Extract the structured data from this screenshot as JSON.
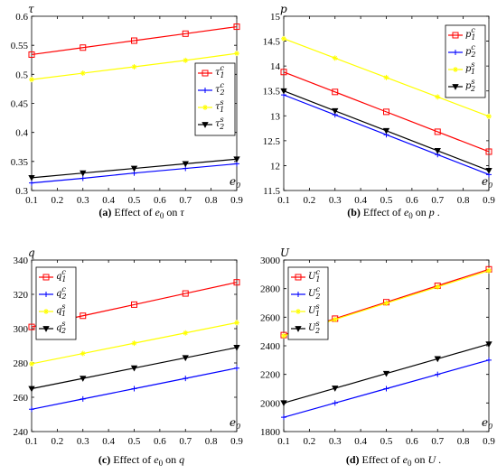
{
  "chart_data": [
    {
      "type": "line",
      "id": "a",
      "caption": {
        "prefix": "(a)",
        "text": "Effect of",
        "var": "e",
        "sub": "0",
        "on": "on",
        "target": "τ",
        "end": ""
      },
      "ylabel": {
        "main": "τ",
        "sub": ""
      },
      "xlabel": {
        "main": "e",
        "sub": "0"
      },
      "x": [
        0.1,
        0.3,
        0.5,
        0.7,
        0.9
      ],
      "xlim": [
        0.1,
        0.9
      ],
      "ylim": [
        0.3,
        0.6
      ],
      "yticks": [
        "0.3",
        "0.35",
        "0.4",
        "0.45",
        "0.5",
        "0.55",
        "0.6"
      ],
      "xticks": [
        "0.1",
        "0.2",
        "0.3",
        "0.4",
        "0.5",
        "0.6",
        "0.7",
        "0.8",
        "0.9"
      ],
      "legend_position": "right",
      "series": [
        {
          "name": "τ",
          "sub": "1",
          "sup": "c",
          "color": "#ff0000",
          "marker": "square",
          "values": [
            0.534,
            0.546,
            0.558,
            0.57,
            0.582
          ]
        },
        {
          "name": "τ",
          "sub": "2",
          "sup": "c",
          "color": "#0000ff",
          "marker": "plus",
          "values": [
            0.313,
            0.321,
            0.33,
            0.338,
            0.346
          ]
        },
        {
          "name": "τ",
          "sub": "1",
          "sup": "s",
          "color": "#ffff00",
          "marker": "star",
          "values": [
            0.491,
            0.502,
            0.513,
            0.524,
            0.536
          ]
        },
        {
          "name": "τ",
          "sub": "2",
          "sup": "s",
          "color": "#000000",
          "marker": "triangle-down",
          "values": [
            0.322,
            0.33,
            0.338,
            0.346,
            0.354
          ]
        }
      ]
    },
    {
      "type": "line",
      "id": "b",
      "caption": {
        "prefix": "(b)",
        "text": "Effect of",
        "var": "e",
        "sub": "0",
        "on": "on",
        "target": "p",
        "end": "."
      },
      "ylabel": {
        "main": "p",
        "sub": ""
      },
      "xlabel": {
        "main": "e",
        "sub": "0"
      },
      "x": [
        0.1,
        0.3,
        0.5,
        0.7,
        0.9
      ],
      "xlim": [
        0.1,
        0.9
      ],
      "ylim": [
        11.5,
        15
      ],
      "yticks": [
        "11.5",
        "12",
        "12.5",
        "13",
        "13.5",
        "14",
        "14.5",
        "15"
      ],
      "xticks": [
        "0.1",
        "0.2",
        "0.3",
        "0.4",
        "0.5",
        "0.6",
        "0.7",
        "0.8",
        "0.9"
      ],
      "legend_position": "top-right",
      "series": [
        {
          "name": "p",
          "sub": "1",
          "sup": "c",
          "color": "#ff0000",
          "marker": "square",
          "values": [
            13.88,
            13.48,
            13.08,
            12.68,
            12.28
          ]
        },
        {
          "name": "p",
          "sub": "2",
          "sup": "c",
          "color": "#0000ff",
          "marker": "plus",
          "values": [
            13.42,
            13.02,
            12.62,
            12.22,
            11.82
          ]
        },
        {
          "name": "p",
          "sub": "1",
          "sup": "s",
          "color": "#ffff00",
          "marker": "star",
          "values": [
            14.55,
            14.16,
            13.77,
            13.38,
            12.99
          ]
        },
        {
          "name": "p",
          "sub": "2",
          "sup": "s",
          "color": "#000000",
          "marker": "triangle-down",
          "values": [
            13.5,
            13.1,
            12.7,
            12.3,
            11.9
          ]
        }
      ]
    },
    {
      "type": "line",
      "id": "c",
      "caption": {
        "prefix": "(c)",
        "text": "Effect of",
        "var": "e",
        "sub": "0",
        "on": "on",
        "target": "q",
        "end": ""
      },
      "ylabel": {
        "main": "q",
        "sub": ""
      },
      "xlabel": {
        "main": "e",
        "sub": "0"
      },
      "x": [
        0.1,
        0.3,
        0.5,
        0.7,
        0.9
      ],
      "xlim": [
        0.1,
        0.9
      ],
      "ylim": [
        240,
        340
      ],
      "yticks": [
        "240",
        "260",
        "280",
        "300",
        "320",
        "340"
      ],
      "xticks": [
        "0.1",
        "0.2",
        "0.3",
        "0.4",
        "0.5",
        "0.6",
        "0.7",
        "0.8",
        "0.9"
      ],
      "legend_position": "top-left",
      "series": [
        {
          "name": "q",
          "sub": "1",
          "sup": "c",
          "color": "#ff0000",
          "marker": "square",
          "values": [
            301,
            307.5,
            314,
            320.5,
            327
          ]
        },
        {
          "name": "q",
          "sub": "2",
          "sup": "c",
          "color": "#0000ff",
          "marker": "plus",
          "values": [
            253,
            259,
            265,
            271,
            277
          ]
        },
        {
          "name": "q",
          "sub": "1",
          "sup": "s",
          "color": "#ffff00",
          "marker": "star",
          "values": [
            279.5,
            285.5,
            291.5,
            297.5,
            303.5
          ]
        },
        {
          "name": "q",
          "sub": "2",
          "sup": "s",
          "color": "#000000",
          "marker": "triangle-down",
          "values": [
            265,
            271,
            277,
            283,
            289
          ]
        }
      ]
    },
    {
      "type": "line",
      "id": "d",
      "caption": {
        "prefix": "(d)",
        "text": "Effect of",
        "var": "e",
        "sub": "0",
        "on": "on",
        "target": "U",
        "end": "."
      },
      "ylabel": {
        "main": "U",
        "sub": ""
      },
      "xlabel": {
        "main": "e",
        "sub": "0"
      },
      "x": [
        0.1,
        0.3,
        0.5,
        0.7,
        0.9
      ],
      "xlim": [
        0.1,
        0.9
      ],
      "ylim": [
        1800,
        3000
      ],
      "yticks": [
        "1800",
        "2000",
        "2200",
        "2400",
        "2600",
        "2800",
        "3000"
      ],
      "xticks": [
        "0.1",
        "0.2",
        "0.3",
        "0.4",
        "0.5",
        "0.6",
        "0.7",
        "0.8",
        "0.9"
      ],
      "legend_position": "top-left",
      "series": [
        {
          "name": "U",
          "sub": "1",
          "sup": "c",
          "color": "#ff0000",
          "marker": "square",
          "values": [
            2475,
            2590,
            2705,
            2820,
            2935
          ]
        },
        {
          "name": "U",
          "sub": "2",
          "sup": "c",
          "color": "#0000ff",
          "marker": "plus",
          "values": [
            1900,
            2000,
            2100,
            2200,
            2300
          ]
        },
        {
          "name": "U",
          "sub": "1",
          "sup": "s",
          "color": "#ffff00",
          "marker": "star",
          "values": [
            2470,
            2584,
            2698,
            2812,
            2926
          ]
        },
        {
          "name": "U",
          "sub": "2",
          "sup": "s",
          "color": "#000000",
          "marker": "triangle-down",
          "values": [
            2000,
            2103,
            2206,
            2309,
            2412
          ]
        }
      ]
    }
  ]
}
